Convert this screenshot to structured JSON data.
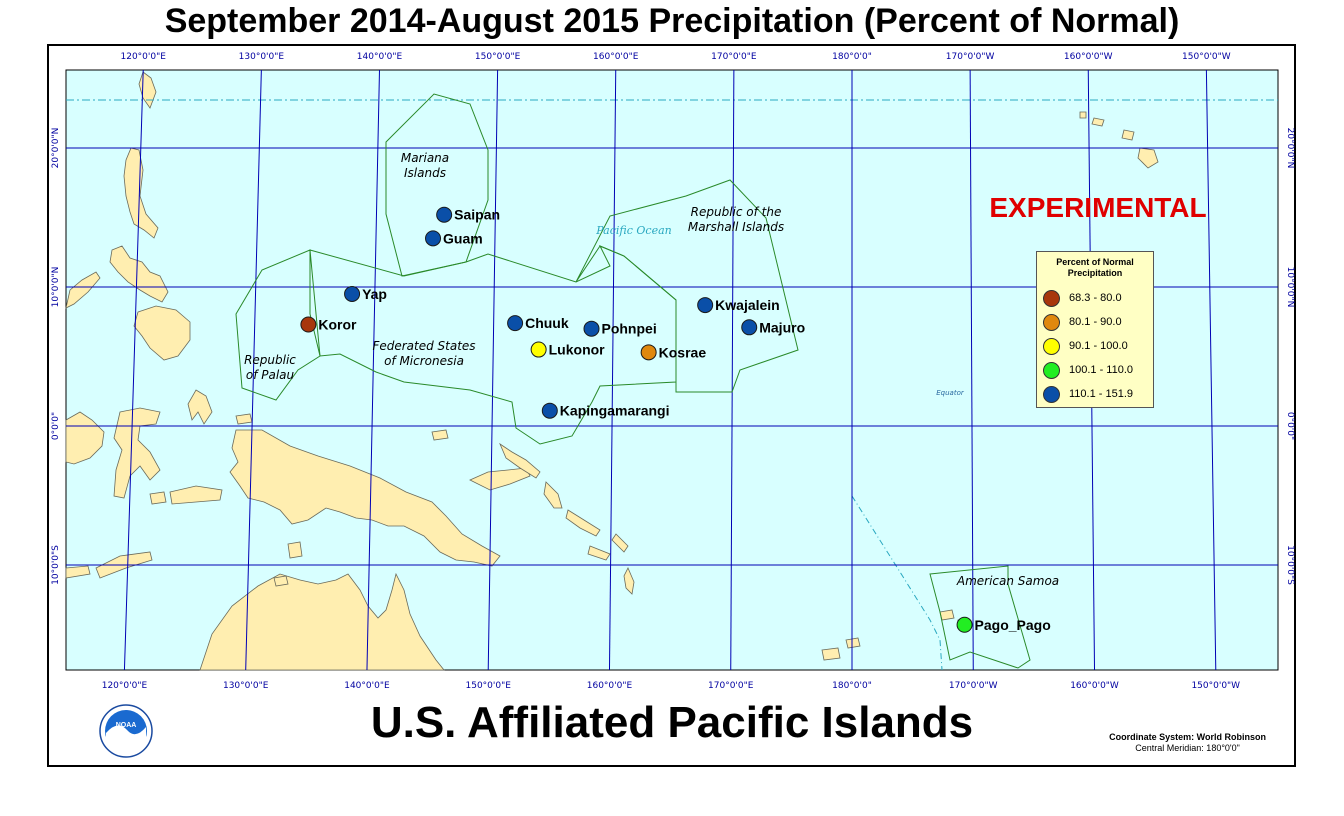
{
  "title": "September 2014-August 2015 Precipitation (Percent of Normal)",
  "subtitle": "U.S. Affiliated Pacific Islands",
  "watermark": "EXPERIMENTAL",
  "coordinate_system": {
    "line1": "Coordinate System: World Robinson",
    "line2": "Central Meridian: 180°0'0\""
  },
  "logo": {
    "name": "noaa-logo",
    "text": "NOAA"
  },
  "colors": {
    "ocean": "#d8ffff",
    "land": "#ffeeb0",
    "grid": "#0000b4",
    "region": "#2a8a2a",
    "watermark": "#e00000"
  },
  "longitude_labels": [
    "120°0'0\"E",
    "130°0'0\"E",
    "140°0'0\"E",
    "150°0'0\"E",
    "160°0'0\"E",
    "170°0'0\"E",
    "180°0'0\"",
    "170°0'0\"W",
    "160°0'0\"W",
    "150°0'0\"W"
  ],
  "latitude_labels": [
    "20°0'0\"N",
    "10°0'0\"N",
    "0°0'0\"",
    "10°0'0\"S"
  ],
  "region_labels": [
    {
      "lines": [
        "Mariana",
        "Islands"
      ]
    },
    {
      "lines": [
        "Republic of the",
        "Marshall Islands"
      ]
    },
    {
      "lines": [
        "Federated States",
        "of Micronesia"
      ]
    },
    {
      "lines": [
        "Republic",
        "of Palau"
      ]
    },
    {
      "lines": [
        "American Samoa"
      ]
    }
  ],
  "ocean_labels": [
    "Pacific Ocean",
    "Equator"
  ],
  "legend": {
    "title_lines": [
      "Percent of Normal",
      "Precipitation"
    ],
    "classes": [
      {
        "label": "68.3 - 80.0",
        "color": "#a8370c"
      },
      {
        "label": "80.1 - 90.0",
        "color": "#e0880e"
      },
      {
        "label": "90.1 - 100.0",
        "color": "#ffff00"
      },
      {
        "label": "100.1 - 110.0",
        "color": "#22ee22"
      },
      {
        "label": "110.1 - 151.9",
        "color": "#0a4fa8"
      }
    ]
  },
  "stations": [
    {
      "name": "Saipan",
      "lat": 15.2,
      "lon": 145.7,
      "class": 4
    },
    {
      "name": "Guam",
      "lat": 13.5,
      "lon": 144.8,
      "class": 4
    },
    {
      "name": "Yap",
      "lat": 9.5,
      "lon": 138.1,
      "class": 4
    },
    {
      "name": "Koror",
      "lat": 7.3,
      "lon": 134.5,
      "class": 0
    },
    {
      "name": "Chuuk",
      "lat": 7.4,
      "lon": 151.8,
      "class": 4
    },
    {
      "name": "Pohnpei",
      "lat": 7.0,
      "lon": 158.2,
      "class": 4
    },
    {
      "name": "Lukonor",
      "lat": 5.5,
      "lon": 153.8,
      "class": 2
    },
    {
      "name": "Kosrae",
      "lat": 5.3,
      "lon": 163.0,
      "class": 1
    },
    {
      "name": "Kwajalein",
      "lat": 8.7,
      "lon": 167.7,
      "class": 4
    },
    {
      "name": "Majuro",
      "lat": 7.1,
      "lon": 171.4,
      "class": 4
    },
    {
      "name": "Kapingamarangi",
      "lat": 1.1,
      "lon": 154.8,
      "class": 4
    },
    {
      "name": "Pago_Pago",
      "lat": -14.3,
      "lon": -170.7,
      "class": 3
    }
  ]
}
